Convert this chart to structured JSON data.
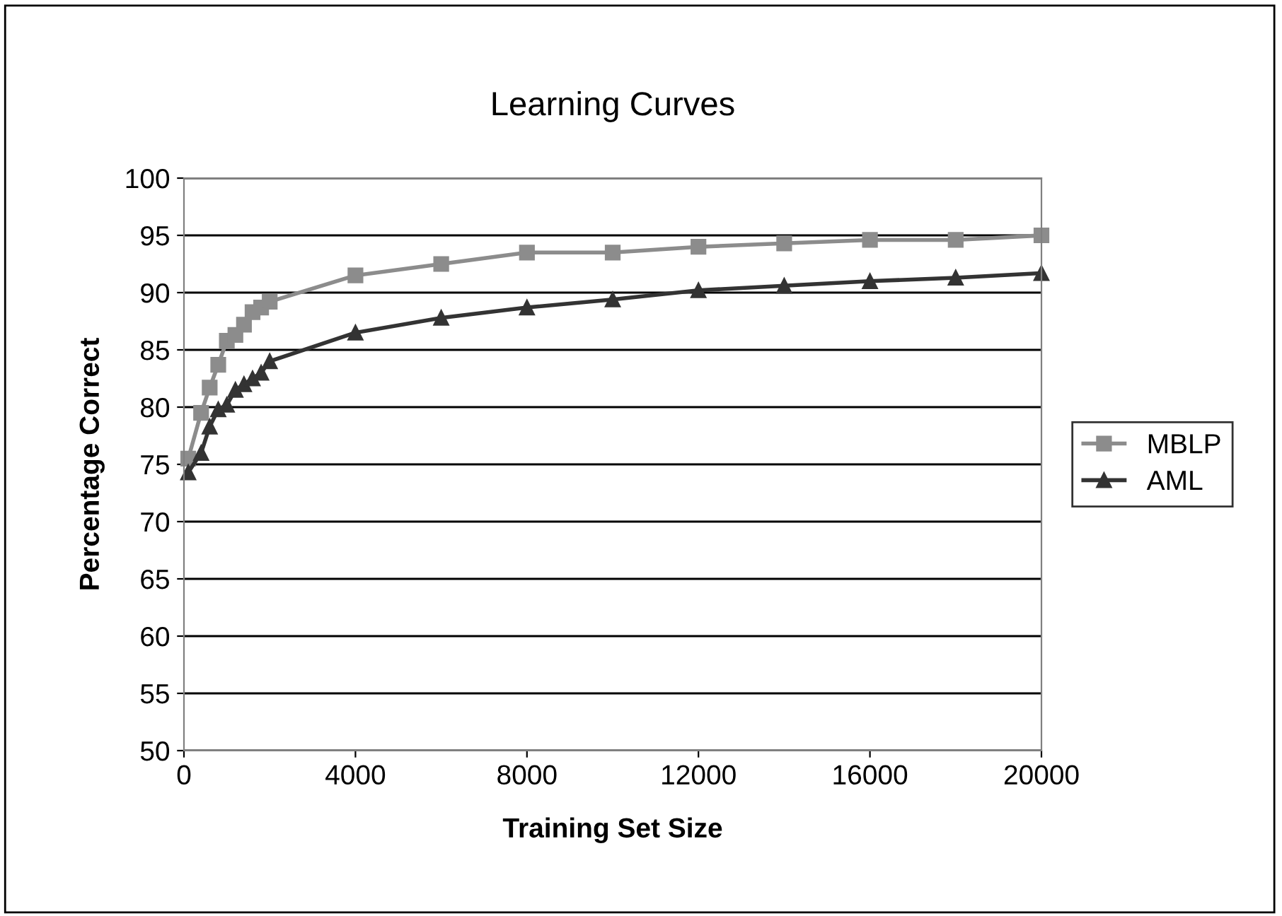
{
  "chart_data": {
    "type": "line",
    "title": "Learning Curves",
    "xlabel": "Training Set Size",
    "ylabel": "Percentage Correct",
    "x": [
      100,
      400,
      600,
      800,
      1000,
      1200,
      1400,
      1600,
      1800,
      2000,
      4000,
      6000,
      8000,
      10000,
      12000,
      14000,
      16000,
      18000,
      20000
    ],
    "series": [
      {
        "name": "MBLP",
        "color": "#8c8c8c",
        "marker": "square",
        "values": [
          75.5,
          79.5,
          81.7,
          83.7,
          85.8,
          86.3,
          87.2,
          88.3,
          88.7,
          89.2,
          91.5,
          92.5,
          93.5,
          93.5,
          94.0,
          94.3,
          94.6,
          94.6,
          95.0
        ]
      },
      {
        "name": "AML",
        "color": "#333333",
        "marker": "triangle",
        "values": [
          74.3,
          76.0,
          78.3,
          79.8,
          80.2,
          81.5,
          82.0,
          82.5,
          83.0,
          84.0,
          86.5,
          87.8,
          88.7,
          89.4,
          90.2,
          90.6,
          91.0,
          91.3,
          91.7
        ]
      }
    ],
    "xlim": [
      0,
      20000
    ],
    "xticks": [
      0,
      4000,
      8000,
      12000,
      16000,
      20000
    ],
    "ylim": [
      50,
      100
    ],
    "yticks": [
      50,
      55,
      60,
      65,
      70,
      75,
      80,
      85,
      90,
      95,
      100
    ],
    "grid": "y",
    "legend": "right",
    "line_style": "solid"
  }
}
